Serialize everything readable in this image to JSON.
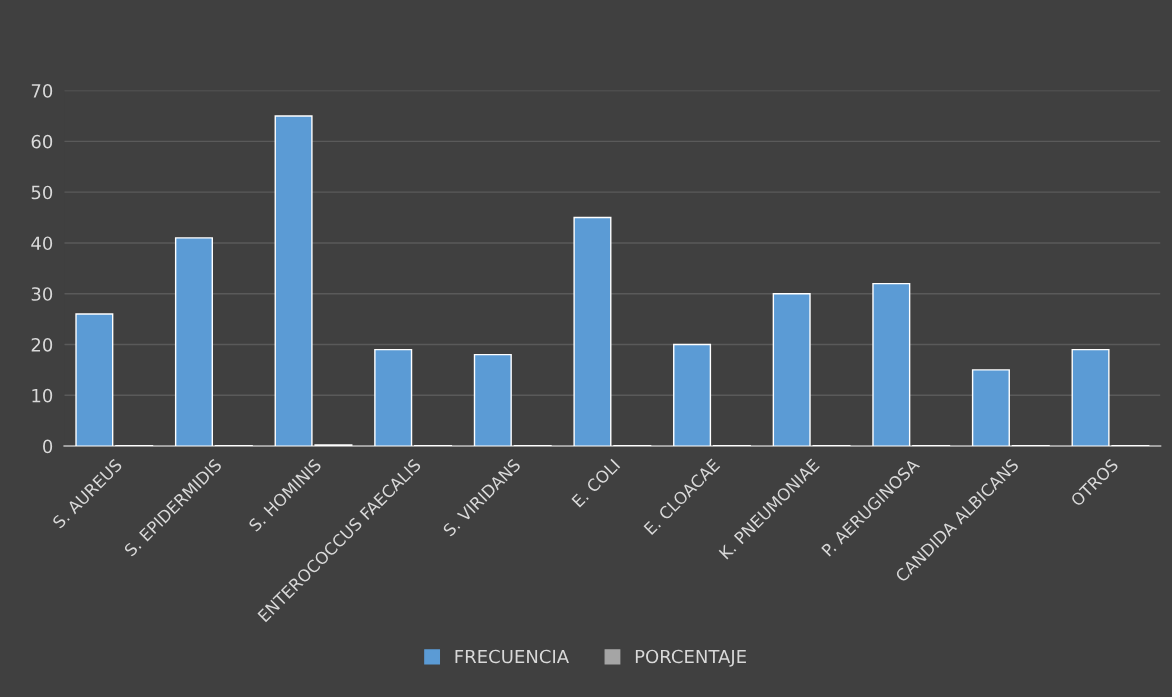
{
  "chart_data": {
    "type": "bar",
    "categories": [
      "S. AUREUS",
      "S. EPIDERMIDIS",
      "S. HOMINIS",
      "ENTEROCOCCUS FAECALIS",
      "S. VIRIDANS",
      "E. COLI",
      "E. CLOACAE",
      "K. PNEUMONIAE",
      "P. AERUGINOSA",
      "CANDIDA ALBICANS",
      "OTROS"
    ],
    "series": [
      {
        "name": "FRECUENCIA",
        "color": "#5b9bd5",
        "values": [
          26,
          41,
          65,
          19,
          18,
          45,
          20,
          30,
          32,
          15,
          19
        ]
      },
      {
        "name": "PORCENTAJE",
        "color": "#a5a5a5",
        "values": [
          0.1,
          0.1,
          0.2,
          0.1,
          0.1,
          0.1,
          0.1,
          0.1,
          0.1,
          0.1,
          0.1
        ]
      }
    ],
    "ylim": [
      0,
      70
    ],
    "yticks": [
      0,
      10,
      20,
      30,
      40,
      50,
      60,
      70
    ],
    "grid": "y",
    "legend": "bottom"
  }
}
